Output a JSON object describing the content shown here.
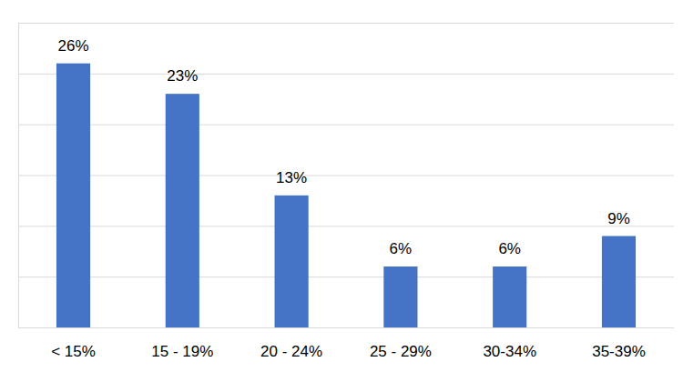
{
  "chart_data": {
    "type": "bar",
    "categories": [
      "< 15%",
      "15 - 19%",
      "20 - 24%",
      "25 - 29%",
      "30-34%",
      "35-39%"
    ],
    "values": [
      26,
      23,
      13,
      6,
      6,
      9
    ],
    "value_labels": [
      "26%",
      "23%",
      "13%",
      "6%",
      "6%",
      "9%"
    ],
    "color": "#4472c4",
    "ylim": [
      0,
      30
    ],
    "yticks": [
      0,
      5,
      10,
      15,
      20,
      25,
      30
    ],
    "grid": true,
    "data_labels": true,
    "tick_labels": "x"
  }
}
